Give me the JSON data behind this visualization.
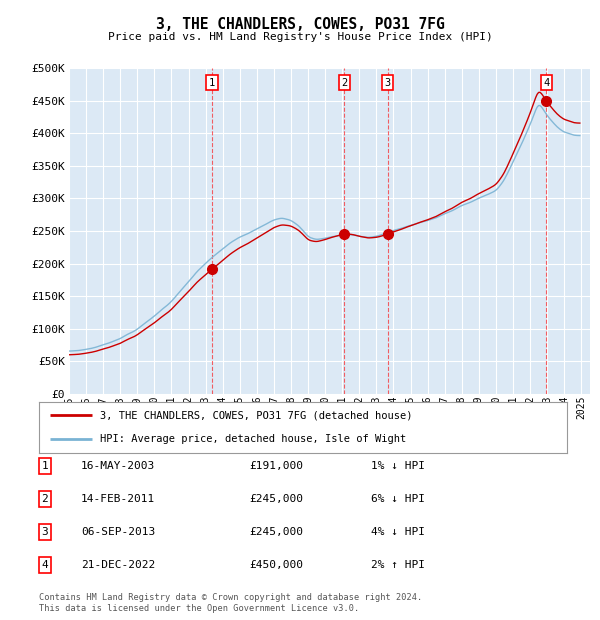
{
  "title": "3, THE CHANDLERS, COWES, PO31 7FG",
  "subtitle": "Price paid vs. HM Land Registry's House Price Index (HPI)",
  "ylabel_ticks": [
    "£0",
    "£50K",
    "£100K",
    "£150K",
    "£200K",
    "£250K",
    "£300K",
    "£350K",
    "£400K",
    "£450K",
    "£500K"
  ],
  "ytick_values": [
    0,
    50000,
    100000,
    150000,
    200000,
    250000,
    300000,
    350000,
    400000,
    450000,
    500000
  ],
  "ylim": [
    0,
    500000
  ],
  "plot_bg_color": "#dce9f5",
  "grid_color": "#ffffff",
  "sales": [
    {
      "num": 1,
      "date_label": "16-MAY-2003",
      "price": 191000,
      "x_year": 2003.375,
      "hpi_rel": "1% ↓ HPI"
    },
    {
      "num": 2,
      "date_label": "14-FEB-2011",
      "price": 245000,
      "x_year": 2011.125,
      "hpi_rel": "6% ↓ HPI"
    },
    {
      "num": 3,
      "date_label": "06-SEP-2013",
      "price": 245000,
      "x_year": 2013.667,
      "hpi_rel": "4% ↓ HPI"
    },
    {
      "num": 4,
      "date_label": "21-DEC-2022",
      "price": 450000,
      "x_year": 2022.958,
      "hpi_rel": "2% ↑ HPI"
    }
  ],
  "hpi_line_color": "#7ab3d4",
  "sale_line_color": "#cc0000",
  "sale_dot_color": "#cc0000",
  "legend_label_sale": "3, THE CHANDLERS, COWES, PO31 7FG (detached house)",
  "legend_label_hpi": "HPI: Average price, detached house, Isle of Wight",
  "footer": "Contains HM Land Registry data © Crown copyright and database right 2024.\nThis data is licensed under the Open Government Licence v3.0.",
  "xlim": [
    1995.0,
    2025.5
  ],
  "xtick_years": [
    1995,
    1996,
    1997,
    1998,
    1999,
    2000,
    2001,
    2002,
    2003,
    2004,
    2005,
    2006,
    2007,
    2008,
    2009,
    2010,
    2011,
    2012,
    2013,
    2014,
    2015,
    2016,
    2017,
    2018,
    2019,
    2020,
    2021,
    2022,
    2023,
    2024,
    2025
  ]
}
